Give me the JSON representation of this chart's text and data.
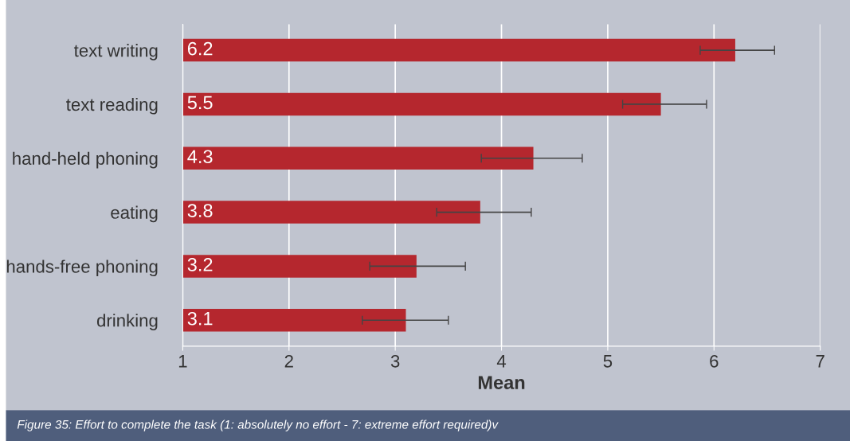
{
  "chart_data": {
    "type": "bar",
    "orientation": "horizontal",
    "xlabel": "Mean",
    "categories": [
      "text writing",
      "text reading",
      "hand-held phoning",
      "eating",
      "hands-free phoning",
      "drinking"
    ],
    "values": [
      6.2,
      5.5,
      4.3,
      3.8,
      3.2,
      3.1
    ],
    "errors": [
      [
        5.87,
        6.57
      ],
      [
        5.14,
        5.93
      ],
      [
        3.81,
        4.76
      ],
      [
        3.39,
        4.28
      ],
      [
        2.76,
        3.66
      ],
      [
        2.69,
        3.5
      ]
    ],
    "color": "#b5272e",
    "data_labels": true,
    "xlim": [
      1,
      7
    ],
    "xticks": [
      1,
      2,
      3,
      4,
      5,
      6,
      7
    ],
    "grid": "x",
    "annotations": [
      "Figure 35: Effort to complete the task (1: absolutely no effort - 7: extreme effort required)v"
    ]
  }
}
